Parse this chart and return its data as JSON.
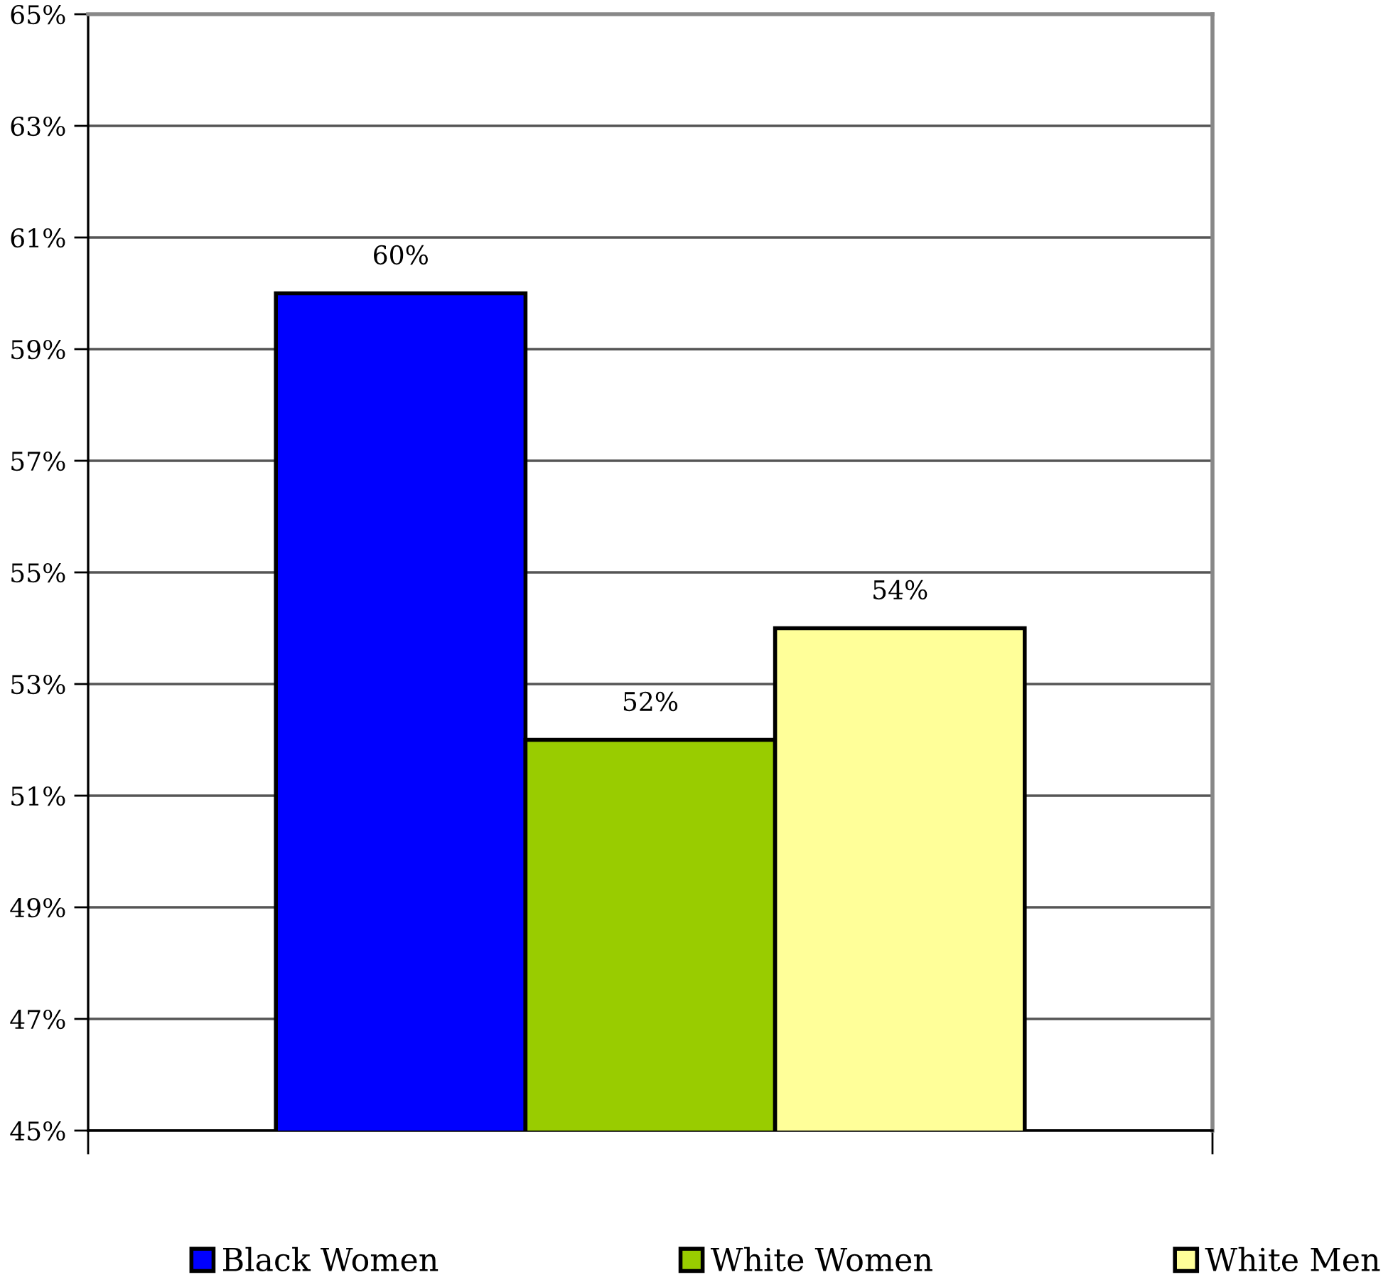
{
  "chart_data": {
    "type": "bar",
    "categories": [
      null
    ],
    "series": [
      {
        "name": "Black Women",
        "color": "#0000ff",
        "values": [
          60
        ],
        "value_labels": [
          "60%"
        ]
      },
      {
        "name": "White Women",
        "color": "#99cc00",
        "values": [
          52
        ],
        "value_labels": [
          "52%"
        ]
      },
      {
        "name": "White Men",
        "color": "#ffff99",
        "values": [
          54
        ],
        "value_labels": [
          "54%"
        ]
      }
    ],
    "ylim": [
      45,
      65
    ],
    "yticks": [
      {
        "value": 45,
        "label": "45%"
      },
      {
        "value": 47,
        "label": "47%"
      },
      {
        "value": 49,
        "label": "49%"
      },
      {
        "value": 51,
        "label": "51%"
      },
      {
        "value": 53,
        "label": "53%"
      },
      {
        "value": 55,
        "label": "55%"
      },
      {
        "value": 57,
        "label": "57%"
      },
      {
        "value": 59,
        "label": "59%"
      },
      {
        "value": 61,
        "label": "61%"
      },
      {
        "value": 63,
        "label": "63%"
      },
      {
        "value": 65,
        "label": "65%"
      }
    ],
    "grid": "y",
    "legend": "bottom"
  }
}
